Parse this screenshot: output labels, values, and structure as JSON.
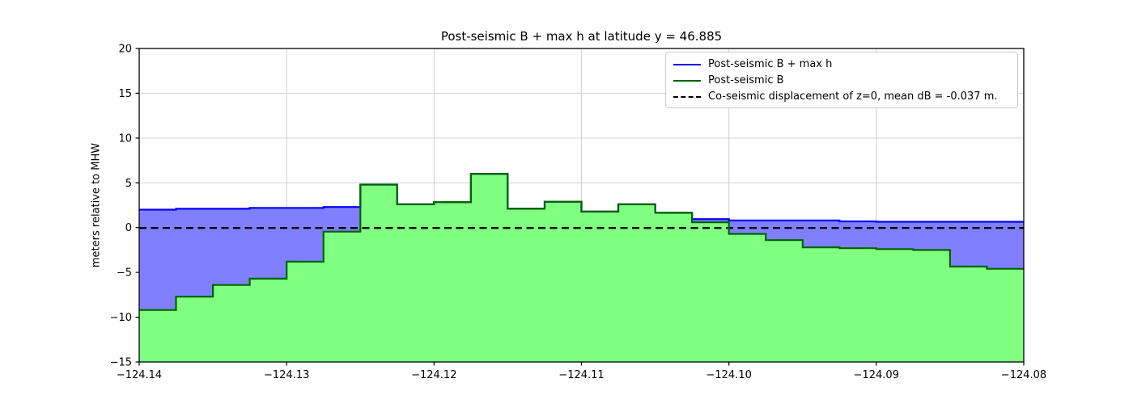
{
  "chart_data": {
    "type": "area",
    "title": "Post-seismic B + max h at latitude y = 46.885",
    "xlabel": "",
    "ylabel": "meters relative to MHW",
    "xlim": [
      -124.14,
      -124.08
    ],
    "ylim": [
      -15,
      20
    ],
    "grid": true,
    "legend_position": "upper right",
    "xticks": [
      -124.14,
      -124.13,
      -124.12,
      -124.11,
      -124.1,
      -124.09,
      -124.08
    ],
    "xtick_labels": [
      "−124.14",
      "−124.13",
      "−124.12",
      "−124.11",
      "−124.10",
      "−124.09",
      "−124.08"
    ],
    "yticks": [
      20,
      15,
      10,
      5,
      0,
      -5,
      -10,
      -15
    ],
    "ytick_labels": [
      "20",
      "15",
      "10",
      "5",
      "0",
      "−5",
      "−10",
      "−15"
    ],
    "step_edges": [
      -124.14,
      -124.1375,
      -124.135,
      -124.1325,
      -124.13,
      -124.1275,
      -124.125,
      -124.1225,
      -124.12,
      -124.1175,
      -124.115,
      -124.1125,
      -124.11,
      -124.1075,
      -124.105,
      -124.1025,
      -124.1,
      -124.0975,
      -124.095,
      -124.0925,
      -124.09,
      -124.0875,
      -124.085,
      -124.0825,
      -124.08
    ],
    "series": [
      {
        "name": "Post-seismic B + max h",
        "line_color": "#0000ff",
        "fill_color": "#7f7fff",
        "values": [
          2.0,
          2.1,
          2.1,
          2.2,
          2.2,
          2.3,
          4.8,
          2.6,
          2.85,
          6.0,
          2.1,
          2.9,
          1.8,
          2.6,
          1.65,
          0.95,
          0.8,
          0.8,
          0.8,
          0.7,
          0.65,
          0.65,
          0.65,
          0.65
        ]
      },
      {
        "name": "Post-seismic B",
        "line_color": "#006400",
        "fill_color": "#80ff80",
        "values": [
          -9.2,
          -7.7,
          -6.4,
          -5.7,
          -3.8,
          -0.45,
          4.8,
          2.6,
          2.85,
          6.0,
          2.1,
          2.9,
          1.8,
          2.6,
          1.65,
          0.6,
          -0.7,
          -1.4,
          -2.2,
          -2.3,
          -2.4,
          -2.5,
          -4.35,
          -4.6
        ]
      }
    ],
    "reference_line": {
      "name": "Co-seismic displacement of z=0, mean dB = -0.037 m.",
      "y": -0.037,
      "color": "#000000",
      "style": "dashed"
    }
  }
}
